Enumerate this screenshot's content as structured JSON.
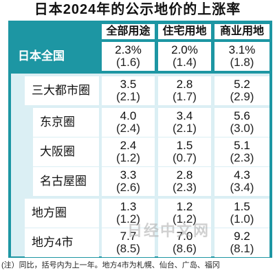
{
  "title": "日本2024年的公示地价的上涨率",
  "columns": [
    "全部用途",
    "住宅用地",
    "商业用地"
  ],
  "rows": [
    {
      "label": "日本全国",
      "values": [
        [
          "2.3%",
          "(1.6)"
        ],
        [
          "2.0%",
          "(1.4)"
        ],
        [
          "3.1%",
          "(1.8)"
        ]
      ]
    },
    {
      "label": "三大都市圈",
      "values": [
        [
          "3.5",
          "(2.1)"
        ],
        [
          "2.8",
          "(1.7)"
        ],
        [
          "5.2",
          "(2.9)"
        ]
      ]
    },
    {
      "label": "东京圈",
      "values": [
        [
          "4.0",
          "(2.4)"
        ],
        [
          "3.4",
          "(2.1)"
        ],
        [
          "5.6",
          "(3.0)"
        ]
      ]
    },
    {
      "label": "大阪圈",
      "values": [
        [
          "2.4",
          "(1.2)"
        ],
        [
          "1.5",
          "(0.7)"
        ],
        [
          "5.1",
          "(2.3)"
        ]
      ]
    },
    {
      "label": "名古屋圈",
      "values": [
        [
          "3.3",
          "(2.6)"
        ],
        [
          "2.8",
          "(2.3)"
        ],
        [
          "4.3",
          "(3.4)"
        ]
      ]
    },
    {
      "label": "地方圈",
      "values": [
        [
          "1.3",
          "(1.2)"
        ],
        [
          "1.2",
          "(1.2)"
        ],
        [
          "1.5",
          "(1.0)"
        ]
      ]
    },
    {
      "label": "地方4市",
      "values": [
        [
          "7.7",
          "(8.5)"
        ],
        [
          "7.0",
          "(8.6)"
        ],
        [
          "9.2",
          "(8.1)"
        ]
      ]
    }
  ],
  "note": "(注）同比，括号内为上一年。地方4市为札幌、仙台、广岛、福冈",
  "watermark": "日经中文网",
  "colors": {
    "accent": "#1d96a3",
    "section_bg": "#dbeff4"
  }
}
